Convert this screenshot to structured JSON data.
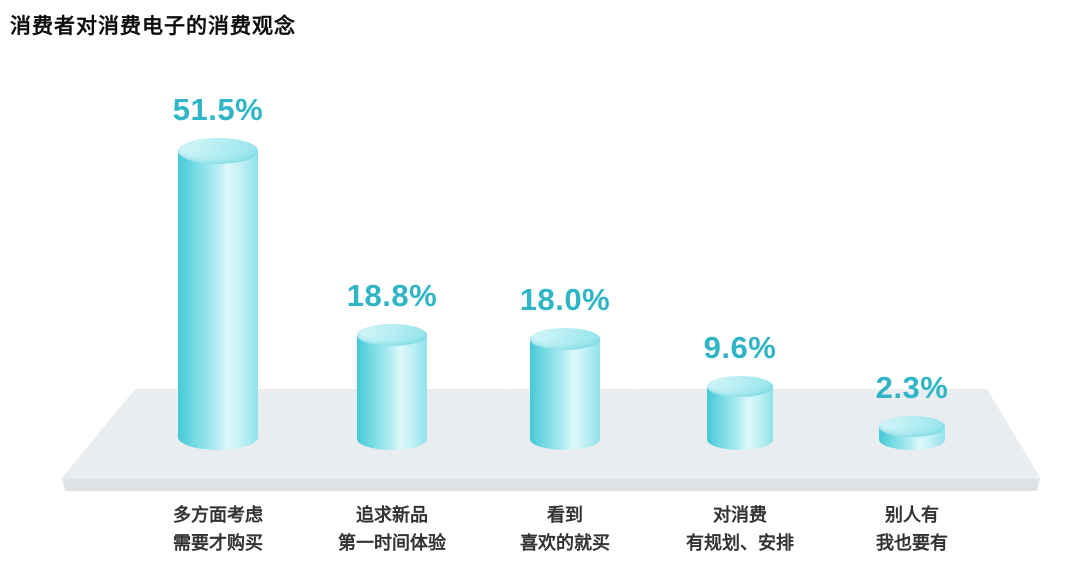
{
  "title": "消费者对消费电子的消费观念",
  "chart_data": {
    "type": "bar",
    "subtype": "3d-cylinder",
    "title": "消费者对消费电子的消费观念",
    "unit": "%",
    "categories": [
      "多方面考虑 需要才购买",
      "追求新品 第一时间体验",
      "看到 喜欢的就买",
      "对消费 有规划、安排",
      "别人有 我也要有"
    ],
    "category_lines": [
      [
        "多方面考虑",
        "需要才购买"
      ],
      [
        "追求新品",
        "第一时间体验"
      ],
      [
        "看到",
        "喜欢的就买"
      ],
      [
        "对消费",
        "有规划、安排"
      ],
      [
        "别人有",
        "我也要有"
      ]
    ],
    "values": [
      51.5,
      18.8,
      18.0,
      9.6,
      2.3
    ],
    "value_labels": [
      "51.5%",
      "18.8%",
      "18.0%",
      "9.6%",
      "2.3%"
    ],
    "ylim": [
      0,
      55
    ],
    "grid": false,
    "legend": "none",
    "xlabel": "",
    "ylabel": ""
  },
  "colors": {
    "background": "#ffffff",
    "title_text": "#0d0d0d",
    "value_text": "#2fb5c6",
    "category_text": "#333333",
    "cylinder_dark": "#45c8d8",
    "cylinder_light": "#ddf8fa",
    "cylinder_top": "#b0ecf1",
    "platform": "#e9ecee",
    "platform_edge": "#dde2e4"
  }
}
